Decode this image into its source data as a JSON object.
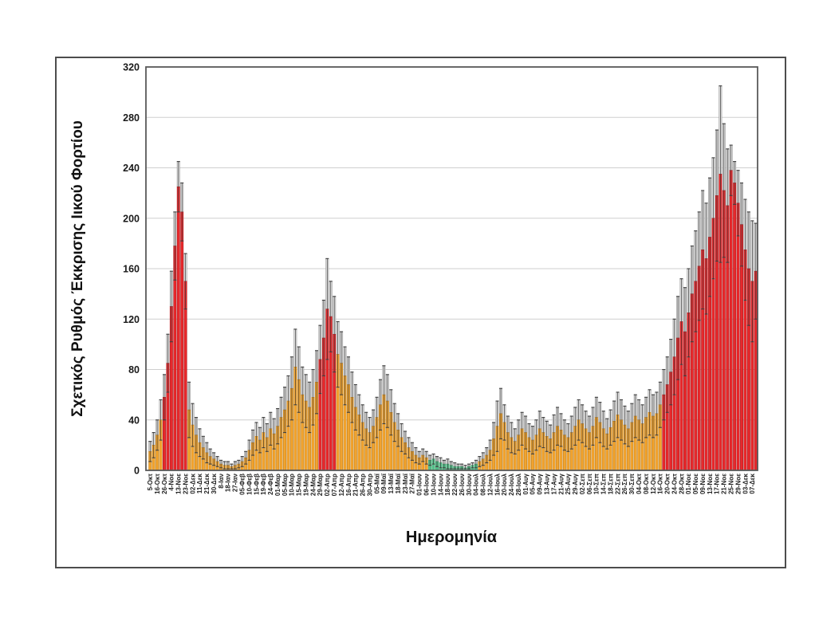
{
  "chart_data": {
    "type": "bar",
    "title": "",
    "xlabel": "Ημερομηνία",
    "ylabel": "Σχετικός Ρυθμός Έκκρισης Ιικού Φορτίου",
    "ylim": [
      0,
      320
    ],
    "ytick_step": 40,
    "grid": true,
    "legend": "none",
    "bars_per_tick_label": 2,
    "x_tick_labels": [
      "5-Οκτ",
      "16-Οκτ",
      "26-Οκτ",
      "4-Νοε",
      "13-Νοε",
      "23-Νοε",
      "02-Δεκ",
      "11-Δεκ",
      "21-Δεκ",
      "30-Δεκ",
      "8-Ιαν",
      "18-Ιαν",
      "27-Ιαν",
      "05-Φεβ",
      "10-Φεβ",
      "15-Φεβ",
      "19-Φεβ",
      "24-Φεβ",
      "01-Μαρ",
      "05-Μαρ",
      "10-Μαρ",
      "15-Μαρ",
      "19-Μαρ",
      "24-Μαρ",
      "29-Μαρ",
      "02-Απρ",
      "07-Απρ",
      "12-Απρ",
      "16-Απρ",
      "21-Απρ",
      "26-Απρ",
      "30-Απρ",
      "05-Μαϊ",
      "09-Μαϊ",
      "13-Μαϊ",
      "18-Μαϊ",
      "23-Μαϊ",
      "27-Μαϊ",
      "01-Ιουν",
      "06-Ιουν",
      "10-Ιουν",
      "14-Ιουν",
      "18-Ιουν",
      "22-Ιουν",
      "26-Ιουν",
      "30-Ιουν",
      "04-Ιουλ",
      "08-Ιουλ",
      "12-Ιουλ",
      "16-Ιουλ",
      "20-Ιουλ",
      "24-Ιουλ",
      "28-Ιουλ",
      "01-Αυγ",
      "05-Αυγ",
      "09-Αυγ",
      "13-Αυγ",
      "17-Αυγ",
      "21-Αυγ",
      "25-Αυγ",
      "29-Αυγ",
      "02-Σεπ",
      "06-Σεπ",
      "10-Σεπ",
      "14-Σεπ",
      "18-Σεπ",
      "22-Σεπ",
      "26-Σεπ",
      "30-Σεπ",
      "04-Οκτ",
      "08-Οκτ",
      "12-Οκτ",
      "16-Οκτ",
      "20-Οκτ",
      "24-Οκτ",
      "28-Οκτ",
      "01-Νοε",
      "05-Νοε",
      "09-Νοε",
      "13-Νοε",
      "17-Νοε",
      "21-Νοε",
      "25-Νοε",
      "29-Νοε",
      "03-Δεκ",
      "07-Δεκ"
    ],
    "series": [
      {
        "name": "relative-viral-shedding-rate",
        "values": [
          15,
          20,
          28,
          40,
          58,
          85,
          130,
          178,
          225,
          205,
          150,
          48,
          36,
          28,
          22,
          18,
          14,
          11,
          9,
          7,
          5,
          4,
          4,
          3,
          4,
          5,
          7,
          10,
          16,
          22,
          27,
          24,
          30,
          26,
          33,
          29,
          35,
          42,
          48,
          55,
          65,
          82,
          72,
          60,
          55,
          50,
          58,
          70,
          88,
          105,
          128,
          122,
          108,
          92,
          85,
          75,
          68,
          58,
          50,
          44,
          38,
          33,
          30,
          35,
          42,
          52,
          60,
          55,
          46,
          38,
          32,
          26,
          22,
          18,
          15,
          12,
          10,
          12,
          10,
          8,
          9,
          7,
          6,
          5,
          5,
          4,
          3,
          3,
          3,
          2,
          3,
          4,
          5,
          7,
          9,
          12,
          16,
          25,
          35,
          45,
          38,
          30,
          26,
          23,
          28,
          33,
          30,
          26,
          24,
          28,
          33,
          30,
          27,
          25,
          30,
          35,
          32,
          28,
          26,
          30,
          35,
          40,
          37,
          33,
          30,
          35,
          42,
          38,
          33,
          29,
          34,
          39,
          44,
          40,
          36,
          33,
          38,
          43,
          40,
          37,
          42,
          46,
          43,
          45,
          52,
          60,
          68,
          78,
          90,
          105,
          118,
          110,
          125,
          140,
          150,
          162,
          175,
          168,
          185,
          200,
          218,
          235,
          222,
          210,
          238,
          228,
          212,
          195,
          175,
          160,
          150,
          158
        ],
        "error_top": [
          23,
          30,
          40,
          56,
          76,
          108,
          158,
          205,
          245,
          228,
          172,
          70,
          53,
          42,
          33,
          27,
          22,
          17,
          14,
          11,
          8,
          7,
          7,
          5,
          7,
          8,
          11,
          15,
          24,
          32,
          38,
          34,
          42,
          37,
          46,
          41,
          49,
          58,
          66,
          75,
          90,
          112,
          98,
          82,
          76,
          70,
          80,
          95,
          115,
          135,
          168,
          150,
          138,
          118,
          110,
          98,
          90,
          78,
          68,
          60,
          52,
          46,
          42,
          48,
          58,
          72,
          83,
          76,
          64,
          53,
          45,
          37,
          31,
          26,
          22,
          18,
          15,
          17,
          15,
          12,
          13,
          11,
          10,
          8,
          9,
          7,
          6,
          5,
          5,
          4,
          5,
          6,
          8,
          11,
          14,
          18,
          24,
          38,
          55,
          65,
          52,
          43,
          38,
          33,
          40,
          46,
          43,
          37,
          35,
          40,
          47,
          42,
          39,
          36,
          44,
          50,
          45,
          40,
          37,
          43,
          50,
          56,
          52,
          47,
          43,
          50,
          58,
          54,
          47,
          41,
          48,
          55,
          62,
          56,
          51,
          47,
          53,
          60,
          56,
          52,
          58,
          64,
          60,
          62,
          70,
          80,
          90,
          104,
          120,
          138,
          152,
          145,
          160,
          178,
          190,
          205,
          222,
          212,
          232,
          248,
          270,
          305,
          275,
          255,
          258,
          245,
          238,
          228,
          215,
          205,
          198,
          196
        ]
      }
    ],
    "color_segments": [
      {
        "from": 0,
        "to": 3,
        "color": "orange"
      },
      {
        "from": 4,
        "to": 10,
        "color": "red"
      },
      {
        "from": 11,
        "to": 47,
        "color": "orange"
      },
      {
        "from": 48,
        "to": 52,
        "color": "red"
      },
      {
        "from": 53,
        "to": 78,
        "color": "orange"
      },
      {
        "from": 79,
        "to": 92,
        "color": "green"
      },
      {
        "from": 93,
        "to": 144,
        "color": "orange"
      },
      {
        "from": 145,
        "to": 171,
        "color": "red"
      }
    ],
    "colors": {
      "orange_fill": "#F2A32E",
      "orange_edge": "#B97A16",
      "red_fill": "#E8282B",
      "red_edge": "#A01418",
      "green_fill": "#54C08A",
      "green_edge": "#2F9960",
      "error_fill": "#DEDEDE",
      "error_edge": "#9A9A9A",
      "whisker": "#3F3F3F",
      "grid": "#CFCFCF",
      "plot_border": "#595959",
      "frame_border": "#4D4D4D"
    }
  }
}
